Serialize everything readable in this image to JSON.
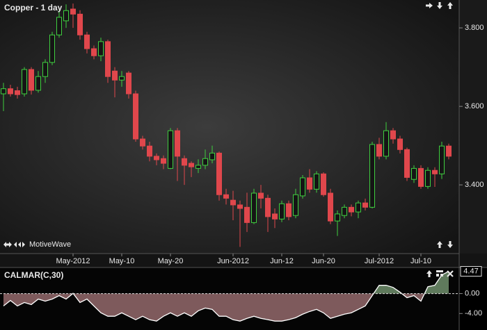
{
  "chart_data": [
    {
      "type": "candlestick",
      "title": "Copper - 1 day",
      "annotation": "MotiveWave",
      "categories": [
        null,
        null,
        null,
        null,
        null,
        null,
        null,
        null,
        null,
        null,
        "May-2012",
        null,
        null,
        null,
        null,
        null,
        null,
        "May-10",
        null,
        null,
        null,
        null,
        null,
        null,
        "May-20",
        null,
        null,
        null,
        null,
        null,
        null,
        null,
        null,
        "Jun-2012",
        null,
        null,
        null,
        null,
        null,
        null,
        "Jun-12",
        null,
        null,
        null,
        null,
        null,
        "Jun-20",
        null,
        null,
        null,
        null,
        null,
        null,
        null,
        "Jul-2012",
        null,
        null,
        null,
        null,
        null,
        "Jul-10",
        null,
        null,
        null,
        null
      ],
      "open": [
        3.632,
        3.645,
        3.64,
        3.632,
        3.694,
        3.641,
        3.676,
        3.712,
        3.782,
        3.818,
        3.848,
        3.835,
        3.782,
        3.747,
        3.729,
        3.765,
        3.69,
        3.667,
        3.685,
        3.632,
        3.517,
        3.499,
        3.473,
        3.467,
        3.442,
        3.538,
        3.467,
        3.455,
        3.442,
        3.45,
        3.464,
        3.481,
        3.375,
        3.361,
        3.349,
        3.343,
        3.304,
        3.379,
        3.366,
        3.326,
        3.313,
        3.352,
        3.322,
        3.372,
        3.418,
        3.389,
        3.428,
        3.379,
        3.308,
        3.322,
        3.343,
        3.331,
        3.354,
        3.343,
        3.503,
        3.473,
        3.538,
        3.517,
        3.49,
        3.414,
        3.442,
        3.396,
        3.437,
        3.428,
        3.499
      ],
      "high": [
        3.66,
        3.655,
        3.65,
        3.7,
        3.7,
        3.69,
        3.72,
        3.79,
        3.845,
        3.86,
        3.862,
        3.845,
        3.79,
        3.755,
        3.775,
        3.77,
        3.7,
        3.69,
        3.69,
        3.64,
        3.525,
        3.51,
        3.48,
        3.475,
        3.545,
        3.545,
        3.475,
        3.46,
        3.465,
        3.49,
        3.5,
        3.485,
        3.39,
        3.385,
        3.36,
        3.38,
        3.39,
        3.4,
        3.375,
        3.34,
        3.36,
        3.36,
        3.39,
        3.425,
        3.44,
        3.435,
        3.432,
        3.39,
        3.335,
        3.35,
        3.35,
        3.36,
        3.365,
        3.51,
        3.52,
        3.56,
        3.545,
        3.525,
        3.495,
        3.45,
        3.45,
        3.445,
        3.445,
        3.51,
        3.505
      ],
      "low": [
        3.588,
        3.625,
        3.62,
        3.625,
        3.63,
        3.635,
        3.66,
        3.705,
        3.775,
        3.8,
        3.8,
        3.77,
        3.735,
        3.72,
        3.715,
        3.66,
        3.623,
        3.65,
        3.62,
        3.51,
        3.49,
        3.46,
        3.45,
        3.44,
        3.44,
        3.41,
        3.4,
        3.42,
        3.43,
        3.44,
        3.455,
        3.36,
        3.35,
        3.31,
        3.242,
        3.28,
        3.3,
        3.34,
        3.28,
        3.29,
        3.305,
        3.31,
        3.315,
        3.365,
        3.38,
        3.38,
        3.37,
        3.3,
        3.27,
        3.315,
        3.32,
        3.315,
        3.335,
        3.34,
        3.465,
        3.465,
        3.505,
        3.48,
        3.41,
        3.405,
        3.39,
        3.39,
        3.395,
        3.415,
        3.465
      ],
      "close": [
        3.645,
        3.632,
        3.63,
        3.694,
        3.641,
        3.676,
        3.712,
        3.782,
        3.827,
        3.844,
        3.835,
        3.782,
        3.747,
        3.729,
        3.765,
        3.676,
        3.667,
        3.676,
        3.632,
        3.517,
        3.499,
        3.473,
        3.464,
        3.455,
        3.538,
        3.473,
        3.45,
        3.446,
        3.45,
        3.467,
        3.481,
        3.375,
        3.366,
        3.349,
        3.34,
        3.304,
        3.379,
        3.366,
        3.319,
        3.313,
        3.352,
        3.319,
        3.375,
        3.418,
        3.389,
        3.428,
        3.375,
        3.308,
        3.326,
        3.343,
        3.331,
        3.354,
        3.343,
        3.503,
        3.473,
        3.538,
        3.517,
        3.49,
        3.419,
        3.442,
        3.396,
        3.437,
        3.428,
        3.499,
        3.473
      ],
      "up_color": "#3fcf3f",
      "down_color": "#e0474c",
      "ylim": [
        3.225,
        3.871
      ],
      "yticks": [
        {
          "value": 3.4,
          "label": "3.400"
        },
        {
          "value": 3.6,
          "label": "3.600"
        },
        {
          "value": 3.8,
          "label": "3.800"
        }
      ],
      "grid": false
    },
    {
      "type": "area-line",
      "title": "CALMAR(C,30)",
      "values": [
        -2.48,
        -1.38,
        -2.48,
        -1.79,
        -2.21,
        -1.1,
        -1.52,
        -1.1,
        -0.41,
        -1.1,
        0.05,
        -1.79,
        -1.1,
        -2.48,
        -3.86,
        -4.55,
        -4.55,
        -3.86,
        -4.55,
        -5.24,
        -4.55,
        -5.24,
        -5.52,
        -4.55,
        -3.86,
        -4.55,
        -3.86,
        -4.55,
        -3.45,
        -2.9,
        -3.17,
        -4.55,
        -4.55,
        -5.24,
        -5.52,
        -4.97,
        -4.55,
        -4.97,
        -5.24,
        -5.52,
        -5.52,
        -5.24,
        -4.83,
        -4.14,
        -3.59,
        -3.17,
        -3.86,
        -4.97,
        -4.55,
        -4.14,
        -3.86,
        -3.17,
        -2.48,
        -0.41,
        1.66,
        1.66,
        1.24,
        0.28,
        -0.83,
        -0.41,
        -1.52,
        1.38,
        1.66,
        3.73,
        4.47
      ],
      "color": "#ffffff",
      "positive_fill": "#5f7a5c",
      "negative_fill": "#7e5a5c",
      "ylim": [
        -7.31,
        5.1
      ],
      "yticks": [
        {
          "value": 0,
          "label": "0.00"
        },
        {
          "value": -4,
          "label": "-4.00"
        }
      ],
      "zero_line": true,
      "last_value_label": true
    }
  ]
}
